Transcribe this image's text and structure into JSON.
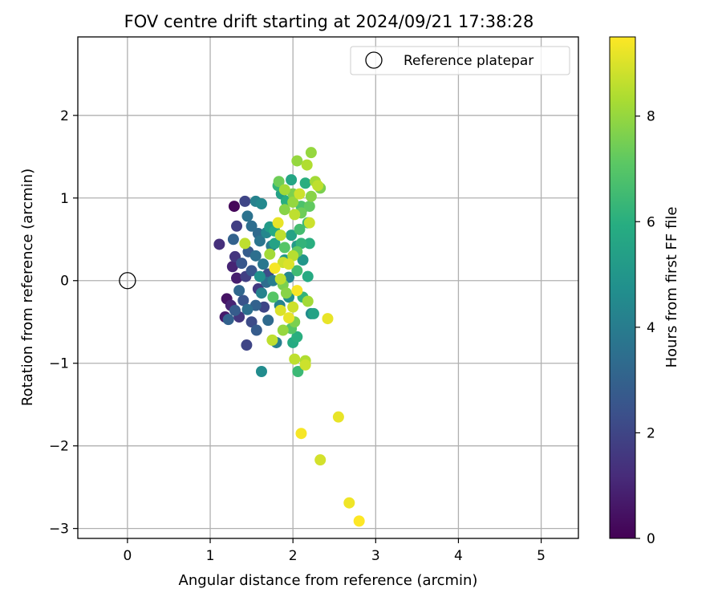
{
  "chart_data": {
    "type": "scatter",
    "title": "FOV centre drift starting at 2024/09/21 17:38:28",
    "xlabel": "Angular distance from reference (arcmin)",
    "ylabel": "Rotation from reference (arcmin)",
    "xlim": [
      -0.6,
      5.45
    ],
    "ylim": [
      -3.12,
      2.95
    ],
    "x_ticks": [
      0,
      1,
      2,
      3,
      4,
      5
    ],
    "y_ticks": [
      -3,
      -2,
      -1,
      0,
      1,
      2
    ],
    "grid": true,
    "legend": {
      "placement": "top-right",
      "entries": [
        "Reference platepar"
      ]
    },
    "reference_point": {
      "x": 0,
      "y": 0,
      "label": "Reference platepar"
    },
    "colorbar": {
      "label": "Hours from first FF file",
      "colormap": "viridis",
      "range": [
        0,
        9.5
      ],
      "ticks": [
        0,
        2,
        4,
        6,
        8
      ]
    },
    "points": [
      {
        "x": 1.29,
        "y": 0.9,
        "c": 0.2
      },
      {
        "x": 1.42,
        "y": 0.96,
        "c": 2.0
      },
      {
        "x": 1.11,
        "y": 0.44,
        "c": 1.3
      },
      {
        "x": 1.27,
        "y": 0.17,
        "c": 1.0
      },
      {
        "x": 1.3,
        "y": 0.29,
        "c": 1.5
      },
      {
        "x": 1.32,
        "y": 0.03,
        "c": 0.8
      },
      {
        "x": 1.2,
        "y": -0.22,
        "c": 0.5
      },
      {
        "x": 1.18,
        "y": -0.44,
        "c": 0.7
      },
      {
        "x": 1.35,
        "y": -0.44,
        "c": 1.5
      },
      {
        "x": 1.44,
        "y": -0.78,
        "c": 2.0
      },
      {
        "x": 1.25,
        "y": -0.3,
        "c": 1.0
      },
      {
        "x": 1.4,
        "y": -0.24,
        "c": 2.5
      },
      {
        "x": 1.5,
        "y": -0.5,
        "c": 2.2
      },
      {
        "x": 1.56,
        "y": -0.6,
        "c": 2.8
      },
      {
        "x": 1.43,
        "y": 0.05,
        "c": 1.8
      },
      {
        "x": 1.58,
        "y": -0.1,
        "c": 1.6
      },
      {
        "x": 1.65,
        "y": -0.32,
        "c": 2.0
      },
      {
        "x": 1.7,
        "y": 0.08,
        "c": 2.2
      },
      {
        "x": 1.46,
        "y": 0.35,
        "c": 2.8
      },
      {
        "x": 1.32,
        "y": 0.66,
        "c": 1.8
      },
      {
        "x": 1.5,
        "y": 0.66,
        "c": 3.4
      },
      {
        "x": 1.45,
        "y": 0.78,
        "c": 3.6
      },
      {
        "x": 1.55,
        "y": 0.96,
        "c": 4.2
      },
      {
        "x": 1.62,
        "y": 0.93,
        "c": 4.5
      },
      {
        "x": 1.28,
        "y": 0.5,
        "c": 3.0
      },
      {
        "x": 1.38,
        "y": 0.21,
        "c": 2.6
      },
      {
        "x": 1.55,
        "y": 0.3,
        "c": 3.5
      },
      {
        "x": 1.6,
        "y": 0.48,
        "c": 3.7
      },
      {
        "x": 1.68,
        "y": 0.58,
        "c": 4.4
      },
      {
        "x": 1.72,
        "y": 0.65,
        "c": 5.2
      },
      {
        "x": 1.78,
        "y": 0.45,
        "c": 5.5
      },
      {
        "x": 1.64,
        "y": 0.2,
        "c": 3.8
      },
      {
        "x": 1.76,
        "y": 0.0,
        "c": 4.0
      },
      {
        "x": 1.84,
        "y": -0.3,
        "c": 4.2
      },
      {
        "x": 1.7,
        "y": -0.48,
        "c": 3.3
      },
      {
        "x": 1.8,
        "y": -0.75,
        "c": 4.1
      },
      {
        "x": 1.62,
        "y": -1.1,
        "c": 4.6
      },
      {
        "x": 1.95,
        "y": -0.2,
        "c": 4.8
      },
      {
        "x": 1.9,
        "y": 0.25,
        "c": 5.0
      },
      {
        "x": 1.98,
        "y": 0.55,
        "c": 5.5
      },
      {
        "x": 2.05,
        "y": 0.42,
        "c": 5.2
      },
      {
        "x": 2.12,
        "y": 0.25,
        "c": 5.0
      },
      {
        "x": 2.2,
        "y": 0.45,
        "c": 6.0
      },
      {
        "x": 2.18,
        "y": 0.7,
        "c": 6.4
      },
      {
        "x": 2.12,
        "y": 0.88,
        "c": 6.8
      },
      {
        "x": 2.2,
        "y": 0.9,
        "c": 7.2
      },
      {
        "x": 2.15,
        "y": 1.18,
        "c": 6.0
      },
      {
        "x": 1.98,
        "y": 1.22,
        "c": 5.6
      },
      {
        "x": 1.82,
        "y": 1.15,
        "c": 6.2
      },
      {
        "x": 1.83,
        "y": 1.2,
        "c": 7.4
      },
      {
        "x": 1.9,
        "y": 1.1,
        "c": 8.2
      },
      {
        "x": 2.05,
        "y": 1.45,
        "c": 8.0
      },
      {
        "x": 2.17,
        "y": 1.4,
        "c": 8.4
      },
      {
        "x": 2.22,
        "y": 1.55,
        "c": 8.0
      },
      {
        "x": 2.27,
        "y": 1.2,
        "c": 8.2
      },
      {
        "x": 2.33,
        "y": 1.12,
        "c": 7.6
      },
      {
        "x": 2.3,
        "y": 1.15,
        "c": 8.6
      },
      {
        "x": 2.22,
        "y": 1.02,
        "c": 7.8
      },
      {
        "x": 2.08,
        "y": 1.05,
        "c": 8.8
      },
      {
        "x": 2.0,
        "y": 0.95,
        "c": 8.0
      },
      {
        "x": 1.9,
        "y": 0.86,
        "c": 7.8
      },
      {
        "x": 2.02,
        "y": 0.8,
        "c": 8.6
      },
      {
        "x": 2.1,
        "y": 0.82,
        "c": 7.4
      },
      {
        "x": 2.2,
        "y": 0.7,
        "c": 8.8
      },
      {
        "x": 2.08,
        "y": 0.62,
        "c": 6.6
      },
      {
        "x": 1.85,
        "y": 0.55,
        "c": 8.6
      },
      {
        "x": 1.82,
        "y": 0.7,
        "c": 9.2
      },
      {
        "x": 1.9,
        "y": 0.4,
        "c": 7.0
      },
      {
        "x": 2.0,
        "y": 0.3,
        "c": 8.5
      },
      {
        "x": 1.95,
        "y": 0.2,
        "c": 9.0
      },
      {
        "x": 1.88,
        "y": 0.22,
        "c": 8.8
      },
      {
        "x": 1.78,
        "y": 0.15,
        "c": 9.4
      },
      {
        "x": 1.72,
        "y": 0.32,
        "c": 8.2
      },
      {
        "x": 1.85,
        "y": 0.02,
        "c": 8.6
      },
      {
        "x": 1.88,
        "y": -0.05,
        "c": 7.6
      },
      {
        "x": 2.05,
        "y": -0.12,
        "c": 9.4
      },
      {
        "x": 2.12,
        "y": -0.2,
        "c": 6.2
      },
      {
        "x": 2.18,
        "y": -0.25,
        "c": 8.2
      },
      {
        "x": 2.0,
        "y": -0.32,
        "c": 8.8
      },
      {
        "x": 1.95,
        "y": -0.45,
        "c": 9.2
      },
      {
        "x": 2.02,
        "y": -0.5,
        "c": 7.6
      },
      {
        "x": 1.88,
        "y": -0.6,
        "c": 8.0
      },
      {
        "x": 1.98,
        "y": -0.58,
        "c": 7.0
      },
      {
        "x": 2.05,
        "y": -0.68,
        "c": 6.0
      },
      {
        "x": 2.0,
        "y": -0.75,
        "c": 5.8
      },
      {
        "x": 1.75,
        "y": -0.72,
        "c": 8.6
      },
      {
        "x": 2.25,
        "y": -0.4,
        "c": 5.5
      },
      {
        "x": 2.42,
        "y": -0.46,
        "c": 9.2
      },
      {
        "x": 2.02,
        "y": -0.95,
        "c": 8.6
      },
      {
        "x": 2.15,
        "y": -0.97,
        "c": 8.4
      },
      {
        "x": 2.15,
        "y": -1.02,
        "c": 8.8
      },
      {
        "x": 2.06,
        "y": -1.1,
        "c": 6.4
      },
      {
        "x": 1.85,
        "y": -0.36,
        "c": 9.0
      },
      {
        "x": 1.76,
        "y": -0.2,
        "c": 7.0
      },
      {
        "x": 1.62,
        "y": -0.15,
        "c": 4.2
      },
      {
        "x": 1.55,
        "y": -0.3,
        "c": 3.0
      },
      {
        "x": 1.45,
        "y": -0.35,
        "c": 3.5
      },
      {
        "x": 1.35,
        "y": -0.12,
        "c": 3.2
      },
      {
        "x": 1.3,
        "y": -0.36,
        "c": 2.8
      },
      {
        "x": 1.22,
        "y": -0.47,
        "c": 3.0
      },
      {
        "x": 1.5,
        "y": 0.12,
        "c": 2.6
      },
      {
        "x": 1.6,
        "y": 0.05,
        "c": 4.8
      },
      {
        "x": 1.68,
        "y": -0.02,
        "c": 3.4
      },
      {
        "x": 1.74,
        "y": 0.42,
        "c": 4.0
      },
      {
        "x": 1.78,
        "y": 0.6,
        "c": 5.8
      },
      {
        "x": 1.58,
        "y": 0.57,
        "c": 3.3
      },
      {
        "x": 1.42,
        "y": 0.45,
        "c": 8.6
      },
      {
        "x": 1.95,
        "y": 0.04,
        "c": 4.4
      },
      {
        "x": 2.05,
        "y": 0.12,
        "c": 6.5
      },
      {
        "x": 2.18,
        "y": 0.05,
        "c": 5.8
      },
      {
        "x": 2.1,
        "y": 0.45,
        "c": 6.2
      },
      {
        "x": 1.92,
        "y": -0.15,
        "c": 7.8
      },
      {
        "x": 2.05,
        "y": 0.35,
        "c": 7.2
      },
      {
        "x": 2.22,
        "y": -0.4,
        "c": 4.6
      },
      {
        "x": 2.0,
        "y": 1.05,
        "c": 7.6
      },
      {
        "x": 2.1,
        "y": 0.9,
        "c": 6.8
      },
      {
        "x": 1.92,
        "y": 0.96,
        "c": 6.0
      },
      {
        "x": 1.86,
        "y": 1.05,
        "c": 5.4
      },
      {
        "x": 2.55,
        "y": -1.65,
        "c": 9.2
      },
      {
        "x": 2.1,
        "y": -1.85,
        "c": 9.4
      },
      {
        "x": 2.33,
        "y": -2.17,
        "c": 8.9
      },
      {
        "x": 2.68,
        "y": -2.69,
        "c": 9.3
      },
      {
        "x": 2.8,
        "y": -2.91,
        "c": 9.5
      }
    ]
  }
}
